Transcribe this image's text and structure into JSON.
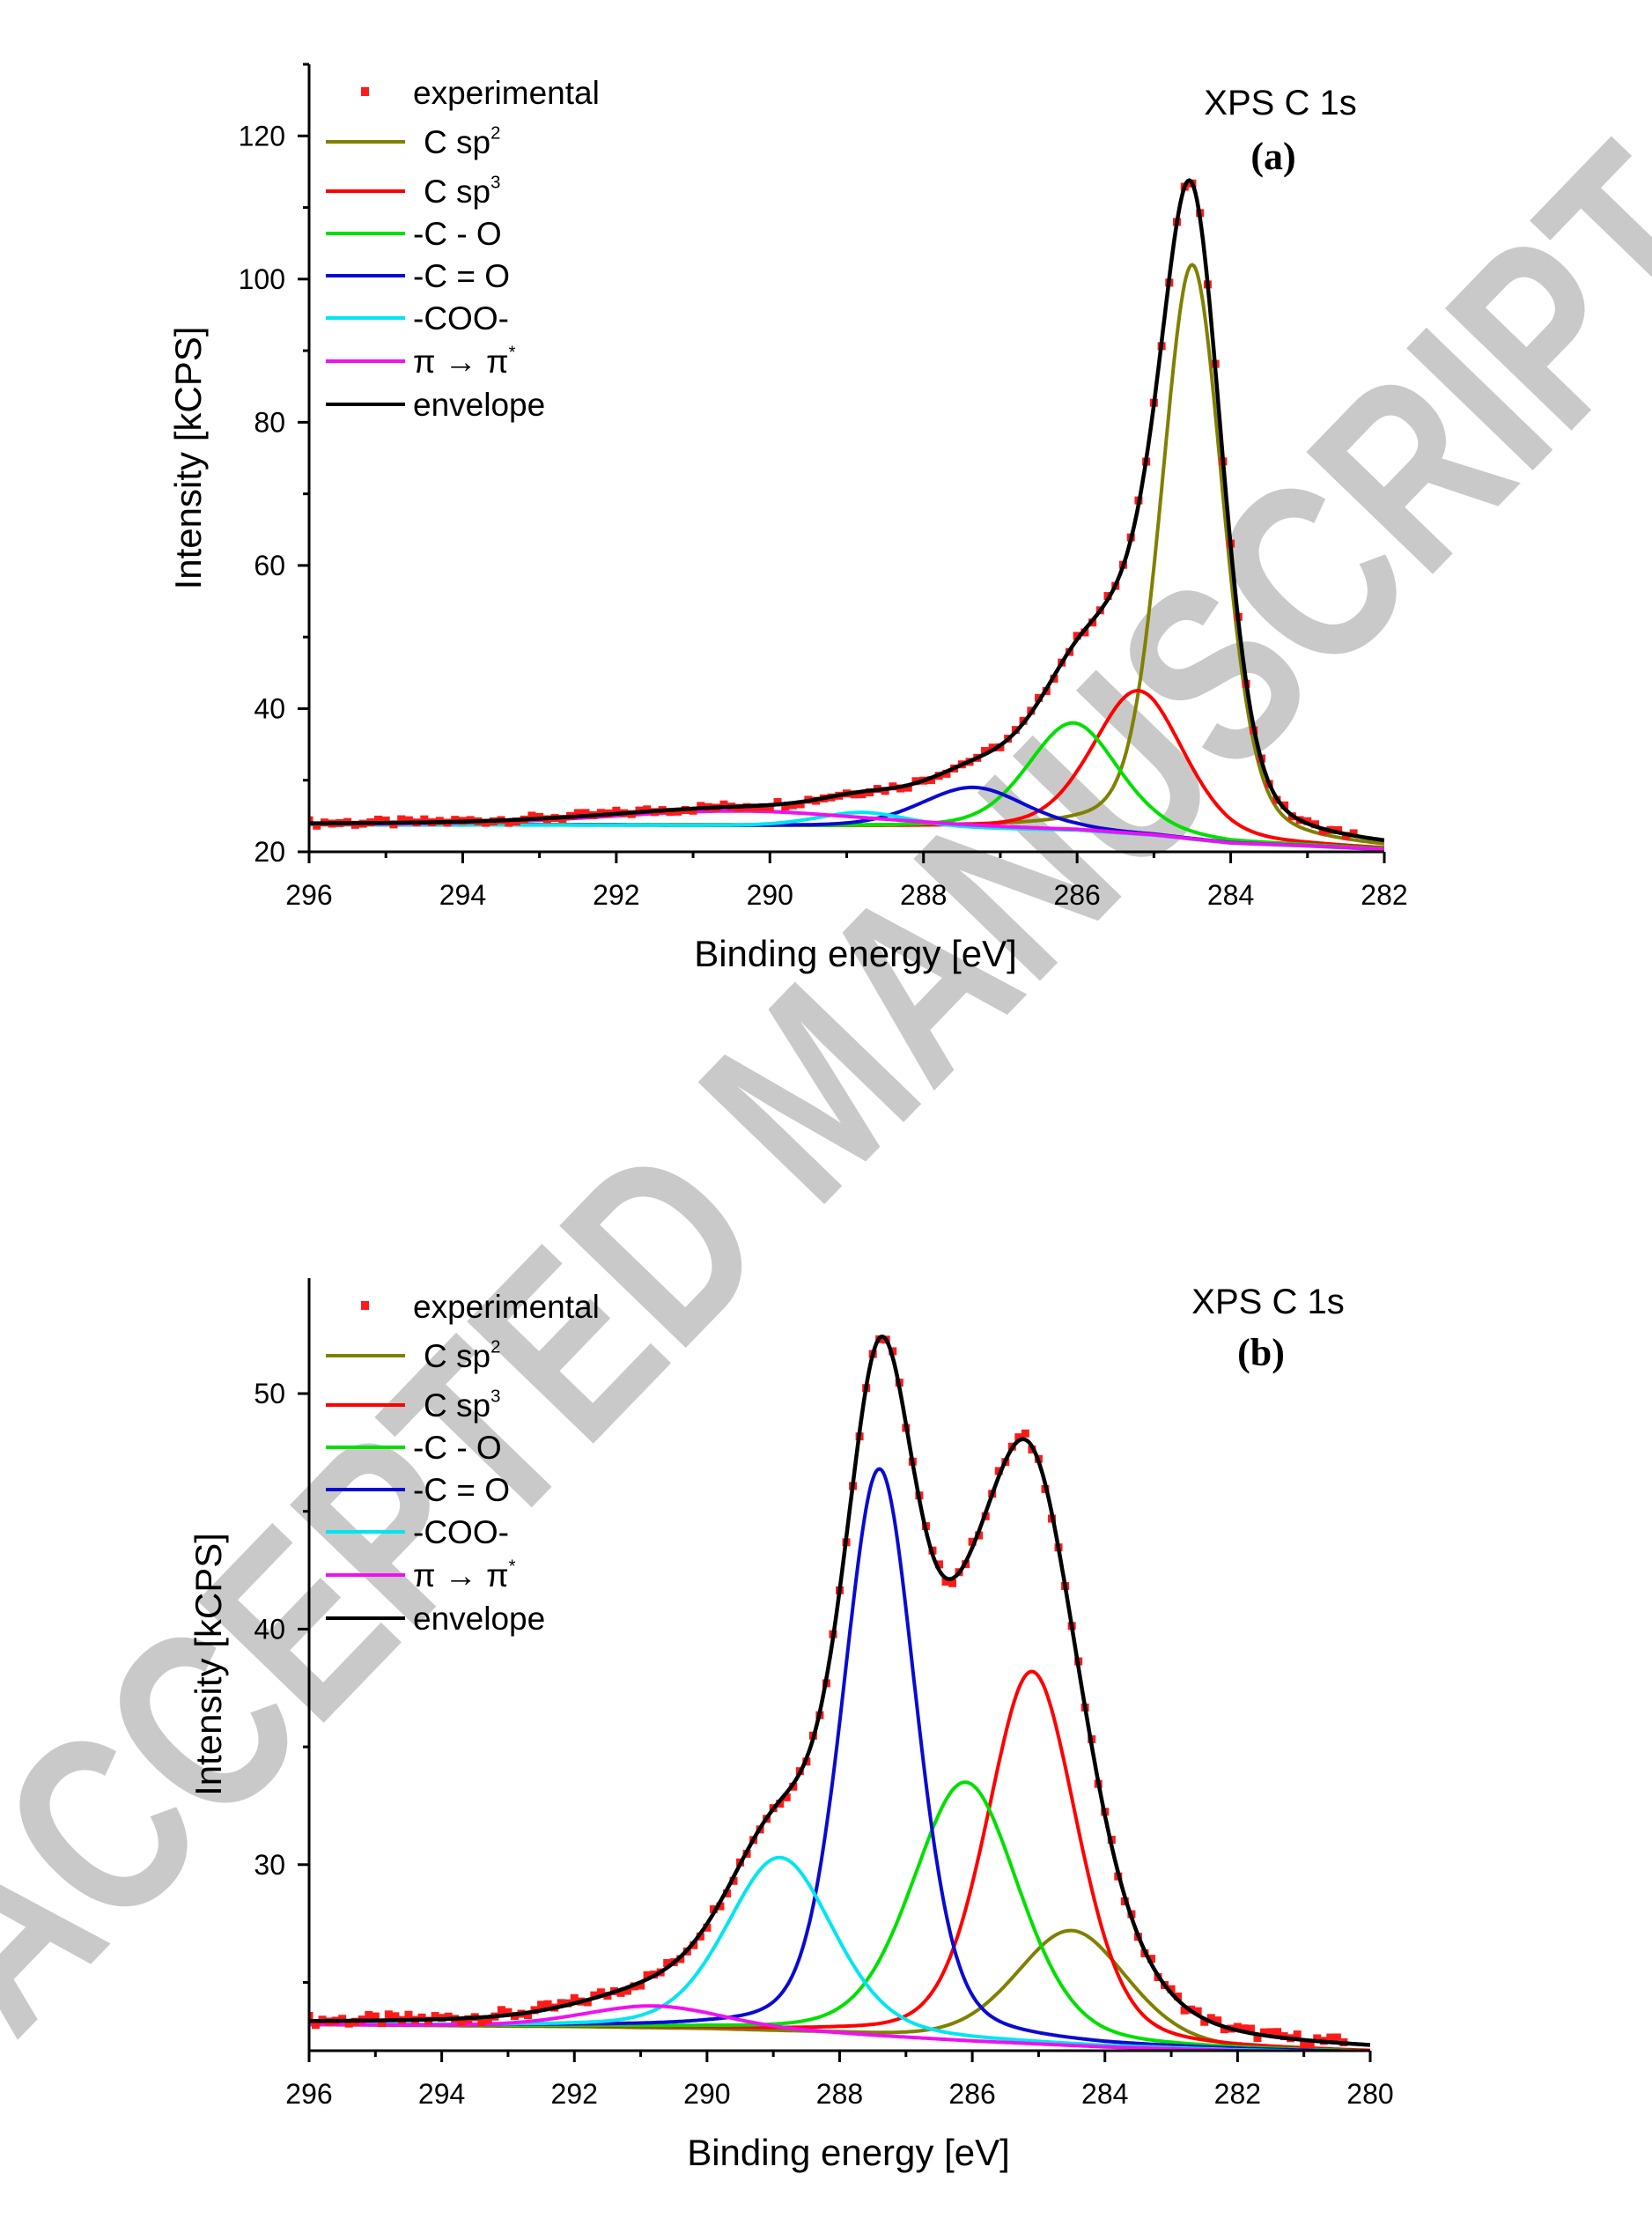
{
  "watermark": "ACCEPTED MANUSCRIPT",
  "chart_data": [
    {
      "type": "line",
      "title": "XPS C 1s",
      "panel_label": "(a)",
      "xlabel": "Binding energy [eV]",
      "ylabel": "Intensity [kCPS]",
      "xlim": [
        296,
        282
      ],
      "x_reversed": true,
      "ylim": [
        20,
        130
      ],
      "xticks": [
        296,
        294,
        292,
        290,
        288,
        286,
        284,
        282
      ],
      "yticks": [
        20,
        40,
        60,
        80,
        100,
        120
      ],
      "x_minor_step": 1,
      "y_minor_step": 10,
      "grid": false,
      "legend_position": "top-left",
      "background": [
        [
          296,
          23.8
        ],
        [
          292,
          23.7
        ],
        [
          290,
          23.6
        ],
        [
          288,
          23.4
        ],
        [
          286,
          23.0
        ],
        [
          285,
          22.3
        ],
        [
          284,
          21.2
        ],
        [
          283,
          20.8
        ],
        [
          282,
          20.3
        ]
      ],
      "experimental": {
        "label": "experimental",
        "sup": "",
        "color": "#ff1a1a",
        "noise": 0.35
      },
      "components": [
        {
          "label": "C sp",
          "sup": "2",
          "color": "#808000",
          "center": 284.5,
          "peak": 102,
          "fwhm": 0.95
        },
        {
          "label": "C sp",
          "sup": "3",
          "color": "#ff0000",
          "center": 285.2,
          "peak": 42.5,
          "fwhm": 1.4
        },
        {
          "label": "-C - O",
          "sup": "",
          "color": "#00e000",
          "center": 286.05,
          "peak": 38,
          "fwhm": 1.4
        },
        {
          "label": "-C = O",
          "sup": "",
          "color": "#0a0ad2",
          "center": 287.35,
          "peak": 29,
          "fwhm": 1.6
        },
        {
          "label": "-COO-",
          "sup": "",
          "color": "#00e5f0",
          "center": 288.8,
          "peak": 25.5,
          "fwhm": 1.4
        },
        {
          "label": "π → π",
          "sup": "*",
          "color": "#f010f0",
          "center": 290.4,
          "peak": 25.7,
          "fwhm": 4.0
        }
      ],
      "envelope": {
        "label": "envelope",
        "sup": "",
        "color": "#000000"
      }
    },
    {
      "type": "line",
      "title": "XPS C 1s",
      "panel_label": "(b)",
      "xlabel": "Binding energy [eV]",
      "ylabel": "Intensity [kCPS]",
      "xlim": [
        296,
        280
      ],
      "x_reversed": true,
      "ylim": [
        22.1,
        54.9
      ],
      "xticks": [
        296,
        294,
        292,
        290,
        288,
        286,
        284,
        282,
        280
      ],
      "yticks": [
        30,
        40,
        50
      ],
      "x_minor_step": 1,
      "y_minor_step": 5,
      "grid": false,
      "legend_position": "top-left",
      "background": [
        [
          296,
          23.2
        ],
        [
          292,
          23.1
        ],
        [
          290,
          23.0
        ],
        [
          288,
          22.8
        ],
        [
          286,
          22.5
        ],
        [
          284,
          22.25
        ],
        [
          282,
          22.1
        ],
        [
          280,
          22.0
        ]
      ],
      "experimental": {
        "label": "experimental",
        "sup": "",
        "color": "#ff1a1a",
        "noise": 0.18
      },
      "components": [
        {
          "label": "C sp",
          "sup": "2",
          "color": "#808000",
          "center": 284.5,
          "peak": 27.2,
          "fwhm": 2.0
        },
        {
          "label": "C sp",
          "sup": "3",
          "color": "#ff0000",
          "center": 285.1,
          "peak": 38.2,
          "fwhm": 1.6
        },
        {
          "label": "-C - O",
          "sup": "",
          "color": "#00e000",
          "center": 286.1,
          "peak": 33.5,
          "fwhm": 1.9
        },
        {
          "label": "-C = O",
          "sup": "",
          "color": "#0a0ad2",
          "center": 287.4,
          "peak": 46.8,
          "fwhm": 1.3
        },
        {
          "label": "-COO-",
          "sup": "",
          "color": "#00e5f0",
          "center": 288.9,
          "peak": 30.3,
          "fwhm": 1.9
        },
        {
          "label": "π → π",
          "sup": "*",
          "color": "#f010f0",
          "center": 290.8,
          "peak": 24.0,
          "fwhm": 2.5
        }
      ],
      "envelope": {
        "label": "envelope",
        "sup": "",
        "color": "#000000"
      }
    }
  ]
}
